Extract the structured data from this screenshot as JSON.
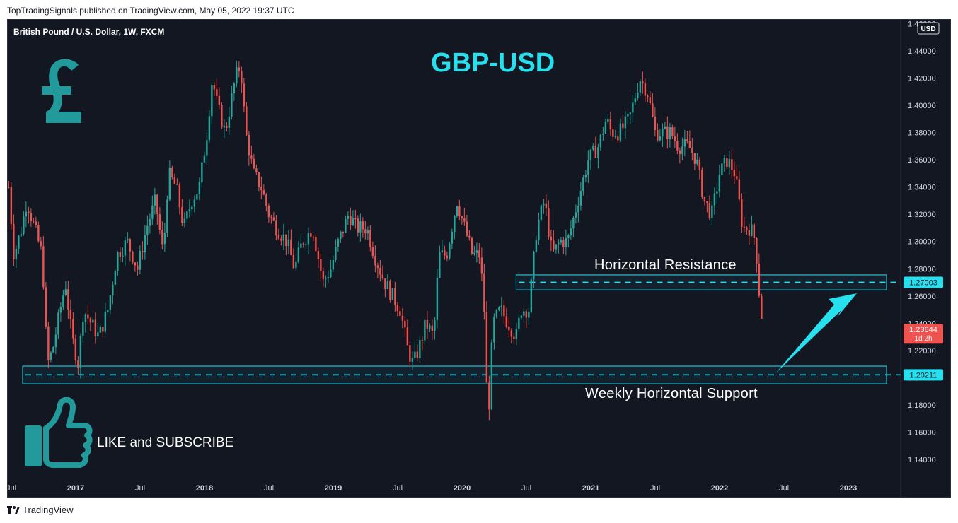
{
  "header": {
    "publisher_line": "TopTradingSignals published on TradingView.com, May 05, 2022 19:37 UTC"
  },
  "chart_meta": {
    "symbol_line": "British Pound / U.S. Dollar, 1W, FXCM",
    "currency_badge": "USD"
  },
  "annotations": {
    "title": "GBP-USD",
    "resistance_label": "Horizontal Resistance",
    "support_label": "Weekly Horizontal Support",
    "like_label": "LIKE and SUBSCRIBE"
  },
  "price_tags": {
    "resistance": "1.27003",
    "support": "1.20211",
    "last": "1.23644",
    "countdown": "1d 2h"
  },
  "footer": {
    "brand": "TradingView"
  },
  "colors": {
    "up": "#26a69a",
    "down": "#ef5350",
    "accent": "#26e0ee",
    "teal_icon": "#22999b"
  },
  "chart_data": {
    "type": "candlestick",
    "title": "GBP-USD",
    "timeframe": "1W",
    "ylim": [
      1.13,
      1.465
    ],
    "y_ticks": [
      "1.14000",
      "1.16000",
      "1.18000",
      "1.20000",
      "1.22000",
      "1.24000",
      "1.26000",
      "1.28000",
      "1.30000",
      "1.32000",
      "1.34000",
      "1.36000",
      "1.38000",
      "1.40000",
      "1.42000",
      "1.44000",
      "1.46000"
    ],
    "x_ticks": [
      "Jul",
      "2017",
      "Jul",
      "2018",
      "Jul",
      "2019",
      "Jul",
      "2020",
      "Jul",
      "2021",
      "Jul",
      "2022",
      "Jul",
      "2023"
    ],
    "x_tick_dates": [
      2016.5,
      2017.0,
      2017.5,
      2018.0,
      2018.5,
      2019.0,
      2019.5,
      2020.0,
      2020.5,
      2021.0,
      2021.5,
      2022.0,
      2022.5,
      2023.0
    ],
    "levels": [
      {
        "name": "Horizontal Resistance",
        "value": 1.27003,
        "zone": [
          1.2645,
          1.2755
        ]
      },
      {
        "name": "Weekly Horizontal Support",
        "value": 1.20211,
        "zone": [
          1.1955,
          1.2085
        ]
      }
    ],
    "last_price": 1.23644,
    "price_path": [
      [
        2016.48,
        1.34
      ],
      [
        2016.52,
        1.29
      ],
      [
        2016.58,
        1.31
      ],
      [
        2016.62,
        1.33
      ],
      [
        2016.68,
        1.31
      ],
      [
        2016.74,
        1.29
      ],
      [
        2016.78,
        1.21
      ],
      [
        2016.82,
        1.22
      ],
      [
        2016.88,
        1.25
      ],
      [
        2016.92,
        1.27
      ],
      [
        2016.97,
        1.23
      ],
      [
        2017.02,
        1.21
      ],
      [
        2017.06,
        1.25
      ],
      [
        2017.12,
        1.24
      ],
      [
        2017.18,
        1.23
      ],
      [
        2017.25,
        1.25
      ],
      [
        2017.32,
        1.29
      ],
      [
        2017.4,
        1.3
      ],
      [
        2017.48,
        1.28
      ],
      [
        2017.55,
        1.31
      ],
      [
        2017.62,
        1.33
      ],
      [
        2017.68,
        1.29
      ],
      [
        2017.72,
        1.35
      ],
      [
        2017.78,
        1.34
      ],
      [
        2017.84,
        1.31
      ],
      [
        2017.9,
        1.33
      ],
      [
        2017.96,
        1.34
      ],
      [
        2018.02,
        1.38
      ],
      [
        2018.06,
        1.42
      ],
      [
        2018.1,
        1.4
      ],
      [
        2018.16,
        1.38
      ],
      [
        2018.24,
        1.42
      ],
      [
        2018.28,
        1.43
      ],
      [
        2018.32,
        1.38
      ],
      [
        2018.38,
        1.35
      ],
      [
        2018.44,
        1.34
      ],
      [
        2018.5,
        1.32
      ],
      [
        2018.56,
        1.31
      ],
      [
        2018.64,
        1.3
      ],
      [
        2018.7,
        1.28
      ],
      [
        2018.76,
        1.3
      ],
      [
        2018.84,
        1.31
      ],
      [
        2018.92,
        1.27
      ],
      [
        2018.98,
        1.28
      ],
      [
        2019.04,
        1.3
      ],
      [
        2019.12,
        1.32
      ],
      [
        2019.18,
        1.31
      ],
      [
        2019.26,
        1.31
      ],
      [
        2019.32,
        1.29
      ],
      [
        2019.4,
        1.27
      ],
      [
        2019.46,
        1.26
      ],
      [
        2019.52,
        1.25
      ],
      [
        2019.58,
        1.22
      ],
      [
        2019.62,
        1.21
      ],
      [
        2019.66,
        1.22
      ],
      [
        2019.72,
        1.24
      ],
      [
        2019.78,
        1.23
      ],
      [
        2019.82,
        1.29
      ],
      [
        2019.88,
        1.29
      ],
      [
        2019.96,
        1.33
      ],
      [
        2020.02,
        1.31
      ],
      [
        2020.08,
        1.29
      ],
      [
        2020.14,
        1.29
      ],
      [
        2020.18,
        1.24
      ],
      [
        2020.2,
        1.16
      ],
      [
        2020.24,
        1.24
      ],
      [
        2020.3,
        1.25
      ],
      [
        2020.36,
        1.24
      ],
      [
        2020.42,
        1.23
      ],
      [
        2020.46,
        1.25
      ],
      [
        2020.52,
        1.25
      ],
      [
        2020.58,
        1.31
      ],
      [
        2020.64,
        1.33
      ],
      [
        2020.7,
        1.29
      ],
      [
        2020.76,
        1.3
      ],
      [
        2020.82,
        1.3
      ],
      [
        2020.9,
        1.33
      ],
      [
        2020.98,
        1.36
      ],
      [
        2021.06,
        1.37
      ],
      [
        2021.12,
        1.39
      ],
      [
        2021.16,
        1.38
      ],
      [
        2021.22,
        1.38
      ],
      [
        2021.3,
        1.39
      ],
      [
        2021.38,
        1.42
      ],
      [
        2021.44,
        1.41
      ],
      [
        2021.5,
        1.38
      ],
      [
        2021.56,
        1.38
      ],
      [
        2021.62,
        1.38
      ],
      [
        2021.68,
        1.37
      ],
      [
        2021.76,
        1.37
      ],
      [
        2021.82,
        1.36
      ],
      [
        2021.88,
        1.33
      ],
      [
        2021.94,
        1.32
      ],
      [
        2022.0,
        1.35
      ],
      [
        2022.06,
        1.36
      ],
      [
        2022.12,
        1.35
      ],
      [
        2022.18,
        1.31
      ],
      [
        2022.24,
        1.31
      ],
      [
        2022.28,
        1.3
      ],
      [
        2022.3,
        1.27
      ],
      [
        2022.32,
        1.25
      ],
      [
        2022.34,
        1.2364
      ]
    ]
  }
}
